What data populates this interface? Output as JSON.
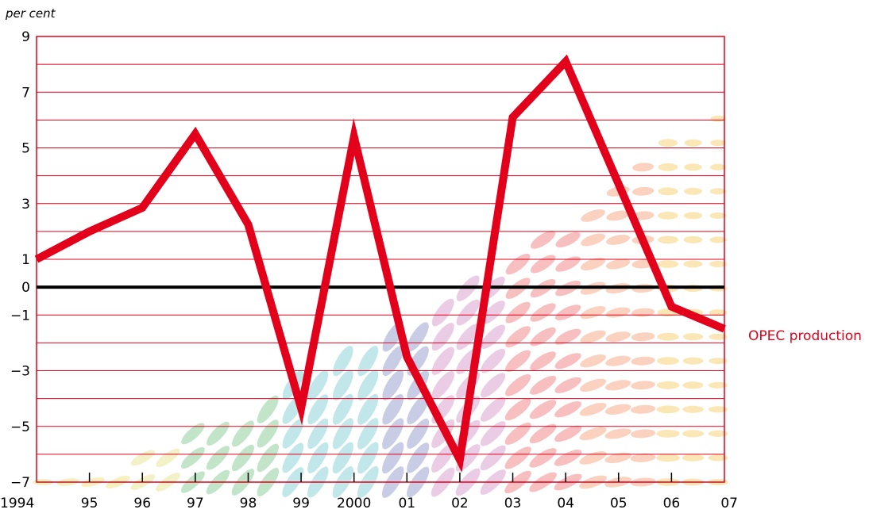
{
  "chart_data": {
    "type": "line",
    "title": "",
    "ylabel": "per cent",
    "xlabel": "",
    "x_tick_labels": [
      "1994",
      "95",
      "96",
      "97",
      "98",
      "99",
      "2000",
      "01",
      "02",
      "03",
      "04",
      "05",
      "06",
      "07"
    ],
    "y_tick_values": [
      9,
      7,
      5,
      3,
      1,
      0,
      -1,
      -3,
      -5,
      -7
    ],
    "y_tick_labels": [
      "9",
      "7",
      "5",
      "3",
      "1",
      "0",
      "−1",
      "−3",
      "−5",
      "−7"
    ],
    "ylim": [
      -7,
      9
    ],
    "grid": true,
    "grid_step": 1,
    "zero_line": true,
    "series": [
      {
        "name": "OPEC production",
        "color": "#e2001a",
        "values": [
          1.0,
          2.0,
          2.85,
          5.5,
          2.25,
          -4.35,
          5.4,
          -2.5,
          -6.2,
          6.1,
          8.1,
          3.7,
          -0.7,
          -1.5
        ]
      }
    ],
    "colors": {
      "grid": "#e2001a",
      "axis": "#000000",
      "series_label": "#e2001a"
    },
    "background_pattern": "decorative-ellipse-dots"
  }
}
